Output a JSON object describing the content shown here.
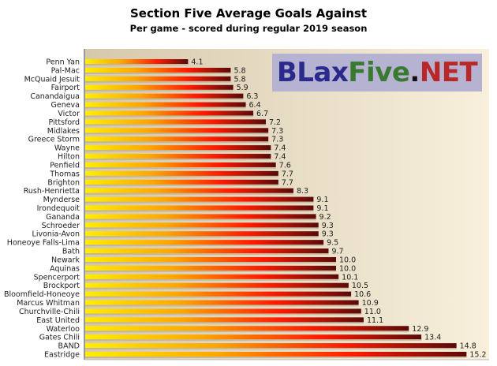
{
  "chart_data": {
    "type": "bar",
    "orientation": "horizontal",
    "title": "Section Five Average Goals Against",
    "subtitle": "Per game - scored during regular 2019 season",
    "xlabel": "",
    "ylabel": "",
    "xlim": [
      0,
      16
    ],
    "grid": false,
    "categories": [
      "Penn Yan",
      "Pal-Mac",
      "McQuaid Jesuit",
      "Fairport",
      "Canandaigua",
      "Geneva",
      "Victor",
      "Pittsford",
      "Midlakes",
      "Greece Storm",
      "Wayne",
      "Hilton",
      "Penfield",
      "Thomas",
      "Brighton",
      "Rush-Henrietta",
      "Mynderse",
      "Irondequoit",
      "Gananda",
      "Schroeder",
      "Livonia-Avon",
      "Honeoye Falls-Lima",
      "Bath",
      "Newark",
      "Aquinas",
      "Spencerport",
      "Brockport",
      "Bloomfield-Honeoye",
      "Marcus Whitman",
      "Churchville-Chili",
      "East United",
      "Waterloo",
      "Gates Chili",
      "BAND",
      "Eastridge"
    ],
    "values": [
      4.1,
      5.8,
      5.8,
      5.9,
      6.3,
      6.4,
      6.7,
      7.2,
      7.3,
      7.3,
      7.4,
      7.4,
      7.6,
      7.7,
      7.7,
      8.3,
      9.1,
      9.1,
      9.2,
      9.3,
      9.3,
      9.5,
      9.7,
      10.0,
      10.0,
      10.1,
      10.5,
      10.6,
      10.9,
      11.0,
      11.1,
      12.9,
      13.4,
      14.8,
      15.2
    ],
    "bar_gradient": [
      "#ffee00",
      "#ffa500",
      "#ff1a00",
      "#5a0a0a"
    ],
    "plot_background": [
      "#d6c8ac",
      "#f8f0dc"
    ]
  },
  "logo": {
    "parts": [
      {
        "text": "BLax",
        "color": "#2a2a8c"
      },
      {
        "text": "Five",
        "color": "#3a7a30"
      },
      {
        "text": ".",
        "color": "#111111"
      },
      {
        "text": "NET",
        "color": "#b82828"
      }
    ]
  }
}
